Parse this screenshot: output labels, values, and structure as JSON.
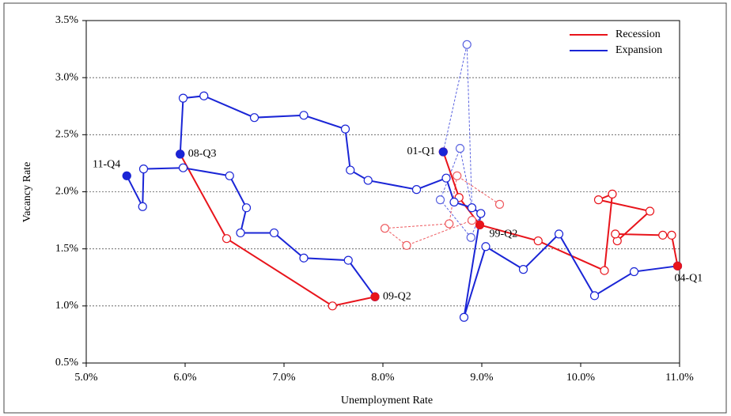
{
  "chart_data": {
    "type": "line",
    "xlabel": "Unemployment Rate",
    "ylabel": "Vacancy Rate",
    "xlim": [
      5.0,
      11.0
    ],
    "xticks": [
      {
        "value": 5.0,
        "label": "5.0%"
      },
      {
        "value": 6.0,
        "label": "6.0%"
      },
      {
        "value": 7.0,
        "label": "7.0%"
      },
      {
        "value": 8.0,
        "label": "8.0%"
      },
      {
        "value": 9.0,
        "label": "9.0%"
      },
      {
        "value": 10.0,
        "label": "10.0%"
      },
      {
        "value": 11.0,
        "label": "11.0%"
      }
    ],
    "ylim": [
      0.5,
      3.5
    ],
    "yticks": [
      {
        "value": 0.5,
        "label": "0.5%"
      },
      {
        "value": 1.0,
        "label": "1.0%"
      },
      {
        "value": 1.5,
        "label": "1.5%"
      },
      {
        "value": 2.0,
        "label": "2.0%"
      },
      {
        "value": 2.5,
        "label": "2.5%"
      },
      {
        "value": 3.0,
        "label": "3.0%"
      },
      {
        "value": 3.5,
        "label": "3.5%"
      }
    ],
    "grid": true,
    "legend": "upper right",
    "series": [
      {
        "name": "Recession",
        "color": "#e8141b",
        "x": [
          5.95,
          6.42,
          7.49,
          7.92,
          null,
          8.61,
          8.77,
          8.98,
          9.57,
          10.24,
          10.32,
          10.18,
          10.7,
          10.37,
          10.35,
          10.83,
          10.92,
          10.98
        ],
        "values": [
          2.33,
          1.59,
          1.0,
          1.08,
          null,
          2.35,
          1.95,
          1.71,
          1.57,
          1.31,
          1.98,
          1.93,
          1.83,
          1.57,
          1.63,
          1.62,
          1.62,
          1.35
        ]
      },
      {
        "name": "Expansion",
        "color": "#1a25d6",
        "x": [
          7.92,
          7.65,
          7.2,
          6.9,
          6.56,
          6.62,
          6.45,
          5.98,
          5.58,
          5.57,
          5.41,
          null,
          5.95,
          5.98,
          6.19,
          6.7,
          7.2,
          7.62,
          7.67,
          7.85,
          8.34,
          8.64,
          8.72,
          8.9,
          8.99,
          8.82,
          9.04,
          9.42,
          9.78,
          10.14,
          10.54,
          10.98
        ],
        "values": [
          1.08,
          1.4,
          1.42,
          1.64,
          1.64,
          1.86,
          2.14,
          2.21,
          2.2,
          1.87,
          2.14,
          null,
          2.33,
          2.82,
          2.84,
          2.65,
          2.67,
          2.55,
          2.19,
          2.1,
          2.02,
          2.12,
          1.91,
          1.86,
          1.81,
          0.9,
          1.52,
          1.32,
          1.63,
          1.09,
          1.3,
          1.35
        ]
      },
      {
        "color": "#5a63e0",
        "dash": true,
        "x": [
          8.61,
          8.85,
          8.9,
          8.78,
          8.58,
          8.89,
          8.99
        ],
        "values": [
          2.35,
          3.29,
          1.86,
          2.38,
          1.93,
          1.6,
          1.81
        ]
      },
      {
        "color": "#ee5a5f",
        "dash": true,
        "x": [
          9.18,
          8.75,
          8.67,
          8.02,
          8.24,
          8.9
        ],
        "values": [
          1.89,
          2.14,
          1.72,
          1.68,
          1.53,
          1.75
        ]
      }
    ],
    "annotations": [
      {
        "text": "01-Q1",
        "x": 8.61,
        "y": 2.35,
        "color": "#1a25d6",
        "side": "left"
      },
      {
        "text": "99-Q2",
        "x": 8.98,
        "y": 1.71,
        "color": "#e8141b",
        "side": "upper-right"
      },
      {
        "text": "08-Q3",
        "x": 5.95,
        "y": 2.33,
        "color": "#1a25d6",
        "side": "right"
      },
      {
        "text": "11-Q4",
        "x": 5.41,
        "y": 2.14,
        "color": "#1a25d6",
        "side": "upper-left"
      },
      {
        "text": "09-Q2",
        "x": 7.92,
        "y": 1.08,
        "color": "#e8141b",
        "side": "right"
      },
      {
        "text": "04-Q1",
        "x": 10.98,
        "y": 1.35,
        "color": "#e8141b",
        "side": "below"
      }
    ]
  }
}
